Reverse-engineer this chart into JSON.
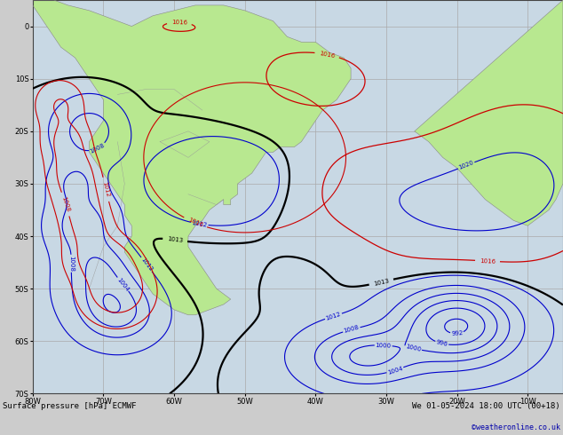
{
  "title_left": "Surface pressure [hPa] ECMWF",
  "title_right": "We 01-05-2024 18:00 UTC (00+18)",
  "copyright": "©weatheronline.co.uk",
  "bg_ocean": "#c8d8e4",
  "land_color": "#b8e890",
  "land_border": "#888888",
  "grid_color": "#aaaaaa",
  "isobar_blue": "#0000cc",
  "isobar_black": "#000000",
  "isobar_red": "#cc0000",
  "bottom_bar": "#cccccc",
  "bottom_text": "#000000",
  "bottom_blue": "#0000aa",
  "lon_min": -80,
  "lon_max": -5,
  "lat_min": -70,
  "lat_max": 5,
  "lon_ticks": [
    -80,
    -70,
    -60,
    -50,
    -40,
    -30,
    -20,
    -10
  ],
  "lat_ticks": [
    -70,
    -60,
    -50,
    -40,
    -30,
    -20,
    -10,
    0
  ]
}
